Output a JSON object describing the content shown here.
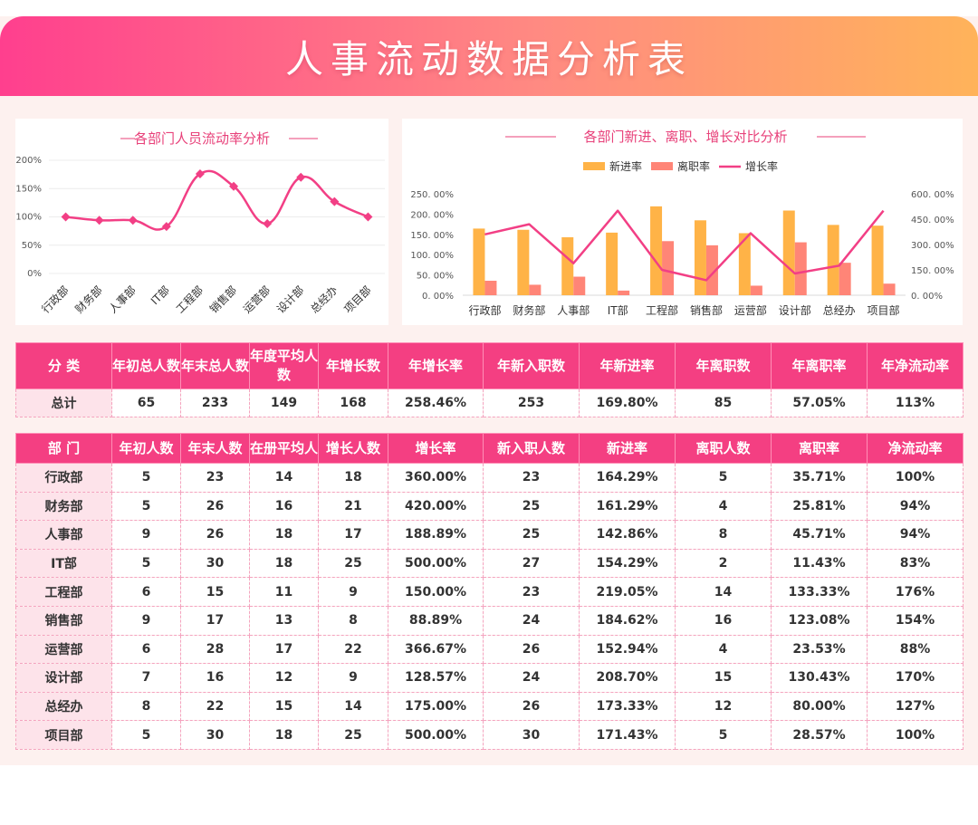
{
  "title": "人事流动数据分析表",
  "chart_data": [
    {
      "type": "line",
      "title": "各部门人员流动率分析",
      "categories": [
        "行政部",
        "财务部",
        "人事部",
        "IT部",
        "工程部",
        "销售部",
        "运营部",
        "设计部",
        "总经办",
        "项目部"
      ],
      "values": [
        100,
        94,
        94,
        83,
        176,
        154,
        88,
        170,
        127,
        100
      ],
      "yticks": [
        "200%",
        "150%",
        "100%",
        "50%",
        "0%"
      ],
      "ylim": [
        0,
        200
      ],
      "color": "#f23f85"
    },
    {
      "type": "bar",
      "title": "各部门新进、离职、增长对比分析",
      "categories": [
        "行政部",
        "财务部",
        "人事部",
        "IT部",
        "工程部",
        "销售部",
        "运营部",
        "设计部",
        "总经办",
        "项目部"
      ],
      "legend": [
        "新进率",
        "离职率",
        "增长率"
      ],
      "series": [
        {
          "name": "新进率",
          "values": [
            164.29,
            161.29,
            142.86,
            154.29,
            219.05,
            184.62,
            152.94,
            208.7,
            173.33,
            171.43
          ],
          "color": "#ffb347",
          "axis": "left"
        },
        {
          "name": "离职率",
          "values": [
            35.71,
            25.81,
            45.71,
            11.43,
            133.33,
            123.08,
            23.53,
            130.43,
            80.0,
            28.57
          ],
          "color": "#ff8577",
          "axis": "left"
        },
        {
          "name": "增长率",
          "values": [
            360.0,
            420.0,
            188.89,
            500.0,
            150.0,
            88.89,
            366.67,
            128.57,
            175.0,
            500.0
          ],
          "color": "#f23f85",
          "axis": "right",
          "type": "line"
        }
      ],
      "yticks_left": [
        "250. 00%",
        "200. 00%",
        "150. 00%",
        "100. 00%",
        "50. 00%",
        "0. 00%"
      ],
      "yticks_right": [
        "600. 00%",
        "450. 00%",
        "300. 00%",
        "150. 00%",
        "0. 00%"
      ],
      "ylim_left": [
        0,
        250
      ],
      "ylim_right": [
        0,
        600
      ]
    }
  ],
  "summary": {
    "headers": [
      "分 类",
      "年初总人数",
      "年末总人数",
      "年度平均人数",
      "年增长数",
      "年增长率",
      "年新入职数",
      "年新进率",
      "年离职数",
      "年离职率",
      "年净流动率"
    ],
    "row": [
      "总计",
      "65",
      "233",
      "149",
      "168",
      "258.46%",
      "253",
      "169.80%",
      "85",
      "57.05%",
      "113%"
    ]
  },
  "detail": {
    "headers": [
      "部 门",
      "年初人数",
      "年末人数",
      "在册平均人数",
      "增长人数",
      "增长率",
      "新入职人数",
      "新进率",
      "离职人数",
      "离职率",
      "净流动率"
    ],
    "rows": [
      [
        "行政部",
        "5",
        "23",
        "14",
        "18",
        "360.00%",
        "23",
        "164.29%",
        "5",
        "35.71%",
        "100%"
      ],
      [
        "财务部",
        "5",
        "26",
        "16",
        "21",
        "420.00%",
        "25",
        "161.29%",
        "4",
        "25.81%",
        "94%"
      ],
      [
        "人事部",
        "9",
        "26",
        "18",
        "17",
        "188.89%",
        "25",
        "142.86%",
        "8",
        "45.71%",
        "94%"
      ],
      [
        "IT部",
        "5",
        "30",
        "18",
        "25",
        "500.00%",
        "27",
        "154.29%",
        "2",
        "11.43%",
        "83%"
      ],
      [
        "工程部",
        "6",
        "15",
        "11",
        "9",
        "150.00%",
        "23",
        "219.05%",
        "14",
        "133.33%",
        "176%"
      ],
      [
        "销售部",
        "9",
        "17",
        "13",
        "8",
        "88.89%",
        "24",
        "184.62%",
        "16",
        "123.08%",
        "154%"
      ],
      [
        "运营部",
        "6",
        "28",
        "17",
        "22",
        "366.67%",
        "26",
        "152.94%",
        "4",
        "23.53%",
        "88%"
      ],
      [
        "设计部",
        "7",
        "16",
        "12",
        "9",
        "128.57%",
        "24",
        "208.70%",
        "15",
        "130.43%",
        "170%"
      ],
      [
        "总经办",
        "8",
        "22",
        "15",
        "14",
        "175.00%",
        "26",
        "173.33%",
        "12",
        "80.00%",
        "127%"
      ],
      [
        "项目部",
        "5",
        "30",
        "18",
        "25",
        "500.00%",
        "30",
        "171.43%",
        "5",
        "28.57%",
        "100%"
      ]
    ]
  }
}
